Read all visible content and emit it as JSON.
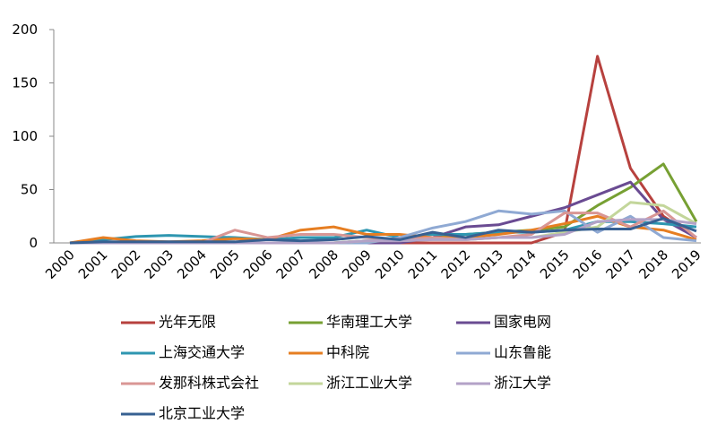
{
  "chart_data": {
    "type": "line",
    "x": [
      "2000",
      "2001",
      "2002",
      "2003",
      "2004",
      "2005",
      "2006",
      "2007",
      "2008",
      "2009",
      "2010",
      "2011",
      "2012",
      "2013",
      "2014",
      "2015",
      "2016",
      "2017",
      "2018",
      "2019"
    ],
    "ylim": [
      0,
      200
    ],
    "yticks": [
      0,
      50,
      100,
      150,
      200
    ],
    "series": [
      {
        "name": "光年无限",
        "color": "#b7413e",
        "values": [
          0,
          0,
          0,
          0,
          0,
          0,
          0,
          0,
          0,
          0,
          0,
          0,
          0,
          0,
          0,
          10,
          175,
          70,
          25,
          5
        ]
      },
      {
        "name": "华南理工大学",
        "color": "#77a033",
        "values": [
          0,
          0,
          0,
          0,
          0,
          0,
          0,
          0,
          0,
          2,
          3,
          5,
          8,
          10,
          12,
          15,
          35,
          52,
          74,
          20
        ]
      },
      {
        "name": "国家电网",
        "color": "#6a4b92",
        "values": [
          0,
          0,
          0,
          0,
          0,
          0,
          0,
          0,
          0,
          0,
          0,
          5,
          15,
          17,
          25,
          33,
          45,
          57,
          22,
          5
        ]
      },
      {
        "name": "上海交通大学",
        "color": "#2e96b0",
        "values": [
          0,
          3,
          6,
          7,
          6,
          5,
          3,
          5,
          5,
          12,
          5,
          8,
          8,
          10,
          10,
          12,
          20,
          20,
          18,
          15
        ]
      },
      {
        "name": "中科院",
        "color": "#e67e22",
        "values": [
          0,
          5,
          2,
          1,
          2,
          4,
          3,
          12,
          15,
          8,
          8,
          5,
          5,
          8,
          12,
          18,
          25,
          15,
          12,
          3
        ]
      },
      {
        "name": "山东鲁能",
        "color": "#8fa9d3",
        "values": [
          0,
          0,
          0,
          0,
          0,
          0,
          0,
          0,
          0,
          0,
          5,
          14,
          20,
          30,
          27,
          30,
          10,
          25,
          5,
          2
        ]
      },
      {
        "name": "发那科株式会社",
        "color": "#d99694",
        "values": [
          0,
          0,
          0,
          0,
          0,
          12,
          5,
          8,
          8,
          5,
          3,
          5,
          3,
          5,
          8,
          28,
          28,
          15,
          30,
          5
        ]
      },
      {
        "name": "浙江工业大学",
        "color": "#c3d69b",
        "values": [
          0,
          0,
          0,
          0,
          0,
          0,
          0,
          0,
          0,
          2,
          2,
          3,
          3,
          5,
          5,
          10,
          15,
          38,
          35,
          18
        ]
      },
      {
        "name": "浙江大学",
        "color": "#b3a2c7",
        "values": [
          0,
          0,
          0,
          0,
          0,
          0,
          0,
          0,
          0,
          2,
          2,
          3,
          3,
          5,
          5,
          8,
          20,
          22,
          22,
          18
        ]
      },
      {
        "name": "北京工业大学",
        "color": "#376092",
        "values": [
          0,
          1,
          1,
          1,
          1,
          1,
          3,
          2,
          3,
          6,
          3,
          10,
          5,
          12,
          10,
          12,
          13,
          13,
          23,
          11
        ]
      }
    ]
  }
}
